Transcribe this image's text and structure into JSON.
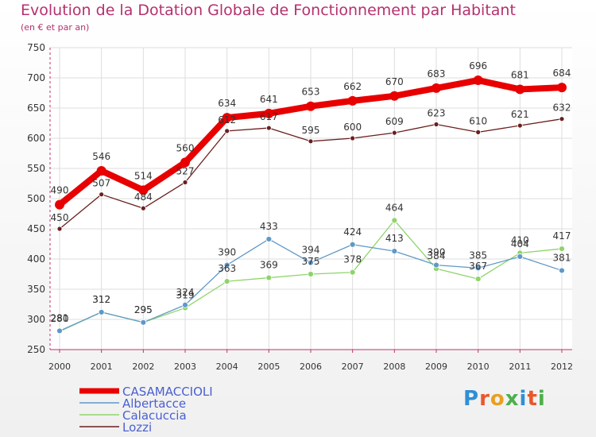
{
  "title": "Evolution de la Dotation Globale de Fonctionnement par Habitant",
  "subtitle": "(en € et par an)",
  "logo": {
    "text": "Proxiti",
    "letter_colors": [
      "#2e8fd6",
      "#e8582a",
      "#e8a020",
      "#4bb04b",
      "#2e8fd6",
      "#e8582a",
      "#4bb04b"
    ]
  },
  "chart_data": {
    "type": "line",
    "x": [
      "2000",
      "2001",
      "2002",
      "2003",
      "2004",
      "2005",
      "2006",
      "2007",
      "2008",
      "2009",
      "2010",
      "2011",
      "2012"
    ],
    "ylim": [
      250,
      750
    ],
    "yticks": [
      250,
      300,
      350,
      400,
      450,
      500,
      550,
      600,
      650,
      700,
      750
    ],
    "grid": true,
    "legend_position": "bottom-left",
    "series": [
      {
        "name": "Lozzi",
        "color": "#6b1e1e",
        "values": [
          450,
          507,
          484,
          527,
          612,
          617,
          595,
          600,
          609,
          623,
          610,
          621,
          632
        ]
      },
      {
        "name": "Calacuccia",
        "color": "#8fd46a",
        "values": [
          280,
          312,
          295,
          319,
          363,
          369,
          375,
          378,
          464,
          384,
          367,
          410,
          417
        ]
      },
      {
        "name": "Albertacce",
        "color": "#5f99c8",
        "values": [
          281,
          312,
          295,
          324,
          390,
          433,
          394,
          424,
          413,
          390,
          385,
          404,
          381
        ]
      },
      {
        "name": "CASAMACCIOLI",
        "color": "#e80000",
        "values": [
          490,
          546,
          514,
          560,
          634,
          641,
          653,
          662,
          670,
          683,
          696,
          681,
          684
        ]
      }
    ],
    "legend_order": [
      "CASAMACCIOLI",
      "Albertacce",
      "Calacuccia",
      "Lozzi"
    ]
  }
}
